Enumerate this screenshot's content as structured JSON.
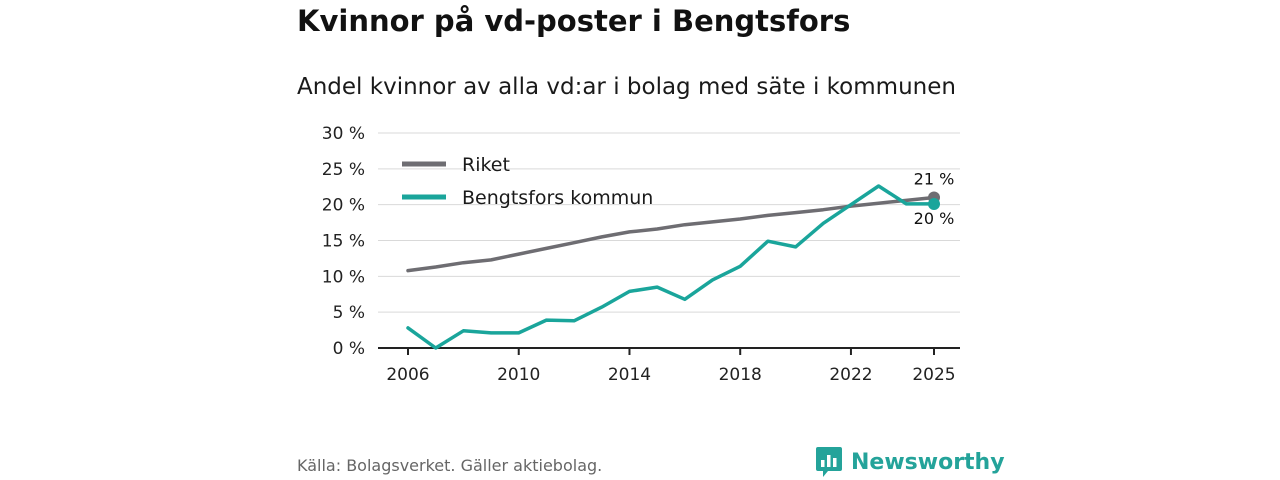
{
  "header": {
    "title": "Kvinnor på vd-poster i Bengtsfors",
    "subtitle": "Andel kvinnor av alla vd:ar i bolag med säte i kommunen"
  },
  "footer": {
    "source": "Källa: Bolagsverket. Gäller aktiebolag.",
    "brand": "Newsworthy"
  },
  "colors": {
    "riket": "#6e6d72",
    "kommun": "#1aa59b",
    "grid": "#d9d9d9",
    "axis": "#222222",
    "brand": "#24a39a"
  },
  "chart_data": {
    "type": "line",
    "title": "Kvinnor på vd-poster i Bengtsfors",
    "subtitle": "Andel kvinnor av alla vd:ar i bolag med säte i kommunen",
    "xlabel": "",
    "ylabel": "",
    "xlim": [
      2006,
      2025
    ],
    "ylim": [
      0,
      30
    ],
    "x_ticks": [
      2006,
      2010,
      2014,
      2018,
      2022,
      2025
    ],
    "x_tick_labels": [
      "2006",
      "2010",
      "2014",
      "2018",
      "2022",
      "2025"
    ],
    "y_ticks": [
      0,
      5,
      10,
      15,
      20,
      25,
      30
    ],
    "y_tick_labels": [
      "0 %",
      "5 %",
      "10 %",
      "15 %",
      "20 %",
      "25 %",
      "30 %"
    ],
    "grid": true,
    "legend_position": "top-left",
    "x": [
      2006,
      2007,
      2008,
      2009,
      2010,
      2011,
      2012,
      2013,
      2014,
      2015,
      2016,
      2017,
      2018,
      2019,
      2020,
      2021,
      2022,
      2023,
      2024,
      2025
    ],
    "series": [
      {
        "name": "Riket",
        "color": "#6e6d72",
        "values": [
          10.8,
          11.3,
          11.9,
          12.3,
          13.1,
          13.9,
          14.7,
          15.5,
          16.2,
          16.6,
          17.2,
          17.6,
          18.0,
          18.5,
          18.9,
          19.3,
          19.8,
          20.2,
          20.6,
          21.0
        ],
        "end_label": "21 %"
      },
      {
        "name": "Bengtsfors kommun",
        "color": "#1aa59b",
        "values": [
          2.8,
          0.0,
          2.4,
          2.1,
          2.1,
          3.9,
          3.8,
          5.7,
          7.9,
          8.5,
          6.8,
          9.5,
          11.4,
          14.9,
          14.1,
          17.4,
          20.0,
          22.6,
          20.1,
          20.1
        ],
        "end_label": "20 %"
      }
    ]
  }
}
